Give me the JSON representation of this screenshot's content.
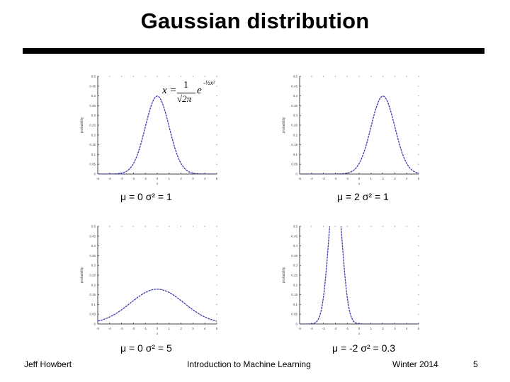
{
  "slide": {
    "title": "Gaussian distribution",
    "footer_left": "Jeff Howbert",
    "footer_center": "Introduction to Machine Learning",
    "footer_right": "Winter 2014",
    "page_number": "5"
  },
  "formula": {
    "lhs": "x =",
    "numerator": "1",
    "root": "√2π",
    "base": "e",
    "exponent": "-½x²"
  },
  "chart_data": [
    {
      "type": "line",
      "caption": "μ = 0  σ² = 1",
      "mu": 0,
      "sigma2": 1,
      "xlabel": "x",
      "ylabel": "probability",
      "xlim": [
        -5,
        5
      ],
      "ylim": [
        0,
        0.5
      ],
      "xticks": [
        "-5",
        "-4",
        "-3",
        "-2",
        "-1",
        "0",
        "1",
        "2",
        "3",
        "4",
        "5"
      ],
      "yticks": [
        "0",
        "0.05",
        "0.1",
        "0.15",
        "0.2",
        "0.25",
        "0.3",
        "0.35",
        "0.4",
        "0.45",
        "0.5"
      ],
      "color": "#3b3bb0"
    },
    {
      "type": "line",
      "caption": "μ = 2  σ² = 1",
      "mu": 2,
      "sigma2": 1,
      "xlabel": "x",
      "ylabel": "probability",
      "xlim": [
        -5,
        5
      ],
      "ylim": [
        0,
        0.5
      ],
      "xticks": [
        "-5",
        "-4",
        "-3",
        "-2",
        "-1",
        "0",
        "1",
        "2",
        "3",
        "4",
        "5"
      ],
      "yticks": [
        "0",
        "0.05",
        "0.1",
        "0.15",
        "0.2",
        "0.25",
        "0.3",
        "0.35",
        "0.4",
        "0.45",
        "0.5"
      ],
      "color": "#3b3bb0"
    },
    {
      "type": "line",
      "caption": "μ = 0  σ² = 5",
      "mu": 0,
      "sigma2": 5,
      "xlabel": "x",
      "ylabel": "probability",
      "xlim": [
        -5,
        5
      ],
      "ylim": [
        0,
        0.5
      ],
      "xticks": [
        "-5",
        "-4",
        "-3",
        "-2",
        "-1",
        "0",
        "1",
        "2",
        "3",
        "4",
        "5"
      ],
      "yticks": [
        "0",
        "0.05",
        "0.1",
        "0.15",
        "0.2",
        "0.25",
        "0.3",
        "0.35",
        "0.4",
        "0.45",
        "0.5"
      ],
      "color": "#3b3bb0"
    },
    {
      "type": "line",
      "caption": "μ = -2  σ² = 0.3",
      "mu": -2,
      "sigma2": 0.3,
      "xlabel": "x",
      "ylabel": "probability",
      "xlim": [
        -5,
        5
      ],
      "ylim": [
        0,
        0.5
      ],
      "xticks": [
        "-5",
        "-4",
        "-3",
        "-2",
        "-1",
        "0",
        "1",
        "2",
        "3",
        "4",
        "5"
      ],
      "yticks": [
        "0",
        "0.05",
        "0.1",
        "0.15",
        "0.2",
        "0.25",
        "0.3",
        "0.35",
        "0.4",
        "0.45",
        "0.5"
      ],
      "color": "#3b3bb0"
    }
  ]
}
